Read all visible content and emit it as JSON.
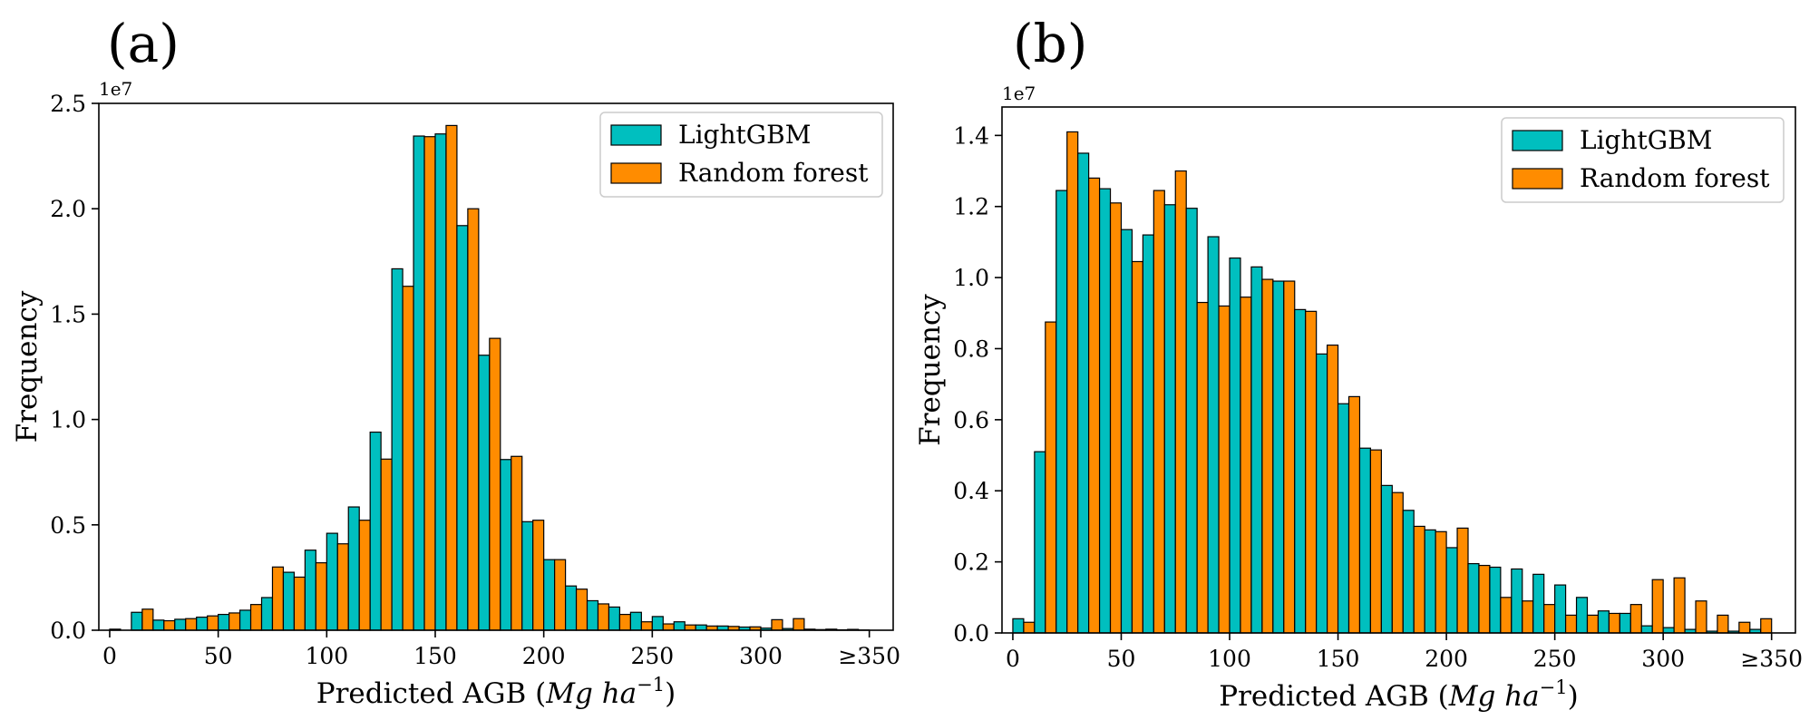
{
  "colors": {
    "lightgbm": "#00BFBF",
    "random_forest": "#FF8C00"
  },
  "chart_data": [
    {
      "type": "bar",
      "panel_label": "(a)",
      "title": "",
      "xlabel": "Predicted AGB (",
      "xlabel_units": "Mg ha",
      "xlabel_exp": "−1",
      "xlabel_close": ")",
      "ylabel": "Frequency",
      "y_multiplier": "1e7",
      "xlim": [
        -5,
        361
      ],
      "ylim": [
        0,
        2.5
      ],
      "bin_width": 10,
      "bin_starts": [
        0,
        10,
        20,
        30,
        40,
        50,
        60,
        70,
        80,
        90,
        100,
        110,
        120,
        130,
        140,
        150,
        160,
        170,
        180,
        190,
        200,
        210,
        220,
        230,
        240,
        250,
        260,
        270,
        280,
        290,
        300,
        310,
        320,
        330,
        340
      ],
      "x_ticks": [
        0,
        50,
        100,
        150,
        200,
        250,
        300,
        350
      ],
      "x_tick_labels": [
        "0",
        "50",
        "100",
        "150",
        "200",
        "250",
        "300",
        "≥350"
      ],
      "y_ticks": [
        0,
        0.5,
        1.0,
        1.5,
        2.0,
        2.5
      ],
      "y_tick_labels": [
        "0.0",
        "0.5",
        "1.0",
        "1.5",
        "2.0",
        "2.5"
      ],
      "legend_position": "upper right",
      "series": [
        {
          "name": "LightGBM",
          "values": [
            0.005,
            0.085,
            0.048,
            0.052,
            0.062,
            0.075,
            0.095,
            0.155,
            0.275,
            0.38,
            0.46,
            0.585,
            0.94,
            1.715,
            2.345,
            2.355,
            1.92,
            1.305,
            0.81,
            0.515,
            0.335,
            0.21,
            0.14,
            0.11,
            0.085,
            0.065,
            0.04,
            0.025,
            0.02,
            0.015,
            0.01,
            0.008,
            0.005,
            0.005,
            0.004
          ]
        },
        {
          "name": "Random forest",
          "values": [
            0.0,
            0.1,
            0.045,
            0.055,
            0.068,
            0.082,
            0.122,
            0.3,
            0.252,
            0.32,
            0.41,
            0.522,
            0.812,
            1.632,
            2.342,
            2.395,
            2.0,
            1.385,
            0.825,
            0.522,
            0.335,
            0.195,
            0.125,
            0.075,
            0.04,
            0.03,
            0.025,
            0.02,
            0.018,
            0.016,
            0.05,
            0.055,
            0.003,
            0.002,
            0.001
          ]
        }
      ]
    },
    {
      "type": "bar",
      "panel_label": "(b)",
      "title": "",
      "xlabel": "Predicted AGB (",
      "xlabel_units": "Mg ha",
      "xlabel_exp": "−1",
      "xlabel_close": ")",
      "ylabel": "Frequency",
      "y_multiplier": "1e7",
      "xlim": [
        -5,
        361
      ],
      "ylim": [
        0,
        1.48
      ],
      "bin_width": 10,
      "bin_starts": [
        0,
        10,
        20,
        30,
        40,
        50,
        60,
        70,
        80,
        90,
        100,
        110,
        120,
        130,
        140,
        150,
        160,
        170,
        180,
        190,
        200,
        210,
        220,
        230,
        240,
        250,
        260,
        270,
        280,
        290,
        300,
        310,
        320,
        330,
        340
      ],
      "x_ticks": [
        0,
        50,
        100,
        150,
        200,
        250,
        300,
        350
      ],
      "x_tick_labels": [
        "0",
        "50",
        "100",
        "150",
        "200",
        "250",
        "300",
        "≥350"
      ],
      "y_ticks": [
        0,
        0.2,
        0.4,
        0.6,
        0.8,
        1.0,
        1.2,
        1.4
      ],
      "y_tick_labels": [
        "0.0",
        "0.2",
        "0.4",
        "0.6",
        "0.8",
        "1.0",
        "1.2",
        "1.4"
      ],
      "legend_position": "upper right",
      "series": [
        {
          "name": "LightGBM",
          "values": [
            0.04,
            0.51,
            1.245,
            1.35,
            1.25,
            1.135,
            1.12,
            1.205,
            1.195,
            1.115,
            1.055,
            1.03,
            0.99,
            0.91,
            0.785,
            0.645,
            0.52,
            0.415,
            0.345,
            0.29,
            0.24,
            0.195,
            0.185,
            0.18,
            0.165,
            0.135,
            0.1,
            0.062,
            0.055,
            0.02,
            0.015,
            0.01,
            0.005,
            0.005,
            0.01
          ]
        },
        {
          "name": "Random forest",
          "values": [
            0.03,
            0.875,
            1.41,
            1.28,
            1.21,
            1.045,
            1.245,
            1.3,
            0.93,
            0.92,
            0.945,
            0.995,
            0.99,
            0.905,
            0.81,
            0.665,
            0.515,
            0.395,
            0.3,
            0.285,
            0.295,
            0.19,
            0.1,
            0.09,
            0.08,
            0.05,
            0.05,
            0.055,
            0.08,
            0.15,
            0.155,
            0.09,
            0.05,
            0.03,
            0.04
          ]
        }
      ]
    }
  ]
}
